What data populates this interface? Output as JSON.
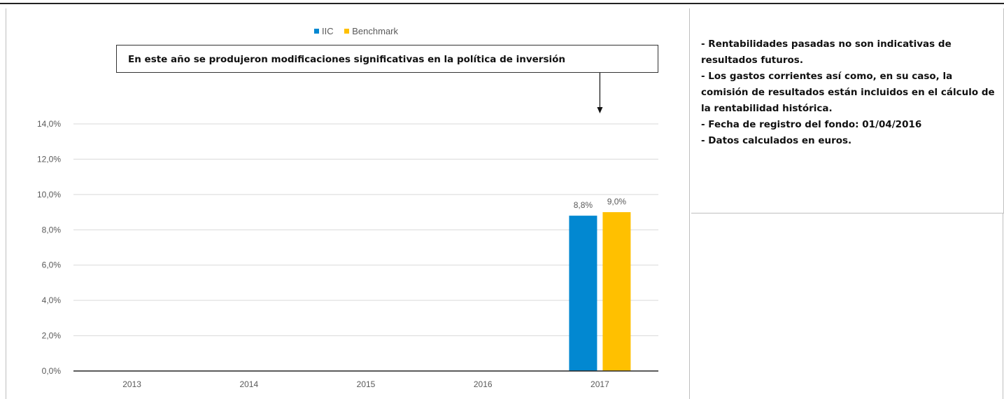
{
  "chart_data": {
    "type": "bar",
    "categories": [
      "2013",
      "2014",
      "2015",
      "2016",
      "2017"
    ],
    "series": [
      {
        "name": "IIC",
        "color": "#0288d1",
        "values": [
          null,
          null,
          null,
          null,
          8.8
        ]
      },
      {
        "name": "Benchmark",
        "color": "#ffc000",
        "values": [
          null,
          null,
          null,
          null,
          9.0
        ]
      }
    ],
    "data_labels": {
      "IIC": [
        "",
        "",
        "",
        "",
        "8,8%"
      ],
      "Benchmark": [
        "",
        "",
        "",
        "",
        "9,0%"
      ]
    },
    "ylim": [
      0,
      14
    ],
    "y_ticks": [
      0,
      2,
      4,
      6,
      8,
      10,
      12,
      14
    ],
    "y_tick_labels": [
      "0,0%",
      "2,0%",
      "4,0%",
      "6,0%",
      "8,0%",
      "10,0%",
      "12,0%",
      "14,0%"
    ],
    "grid": true,
    "legend_position": "top-center",
    "annotation": {
      "text": "En este año se produjeron modificaciones significativas en la política de inversión",
      "category": "2017"
    }
  },
  "notes": [
    "- Rentabilidades pasadas no son indicativas de resultados futuros.",
    "- Los gastos corrientes así como, en su caso, la comisión de resultados están incluidos en el cálculo de la rentabilidad histórica.",
    "- Fecha de registro del fondo: 01/04/2016",
    "- Datos calculados en euros."
  ]
}
